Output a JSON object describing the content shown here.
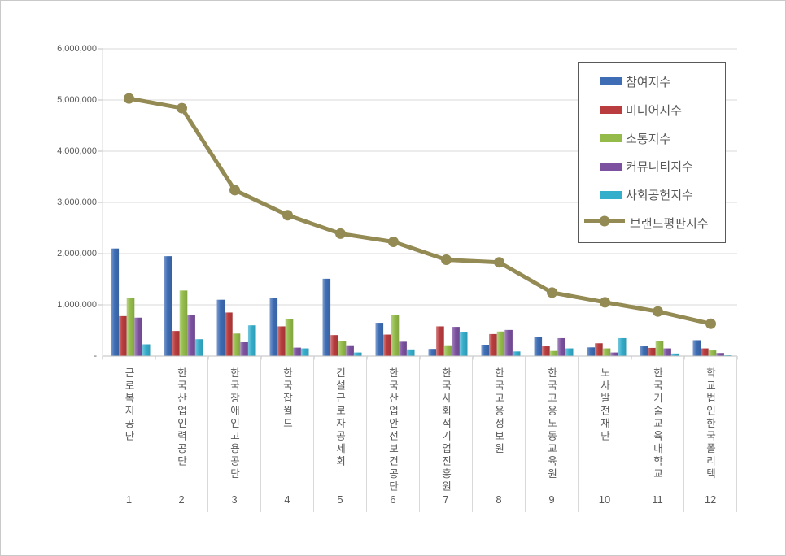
{
  "window": {
    "background": "#ffffff",
    "border_color": "#c9c9c9",
    "text_color": "#595959",
    "gridline_color": "#d9d9d9",
    "axis_color": "#bfbfbf",
    "legend_border_color": "#595959"
  },
  "chart_data": {
    "type": "bar",
    "subtype": "grouped bars with overlay line (combo)",
    "title": "",
    "xlabel": "",
    "ylabel": "",
    "ylim": [
      0,
      6000000
    ],
    "grid": true,
    "legend_position": "upper right",
    "y_ticks": [
      {
        "value": 6000000,
        "label": "6,000,000"
      },
      {
        "value": 5000000,
        "label": "5,000,000"
      },
      {
        "value": 4000000,
        "label": "4,000,000"
      },
      {
        "value": 3000000,
        "label": "3,000,000"
      },
      {
        "value": 2000000,
        "label": "2,000,000"
      },
      {
        "value": 1000000,
        "label": "1,000,000"
      },
      {
        "value": 0,
        "label": "-"
      }
    ],
    "categories": [
      "근로복지공단",
      "한국산업인력공단",
      "한국장애인고용공단",
      "한국잡월드",
      "건설근로자공제회",
      "한국산업안전보건공단",
      "한국사회적기업진흥원",
      "한국고용정보원",
      "한국고용노동교육원",
      "노사발전재단",
      "한국기술교육대학교",
      "학교법인한국폴리텍"
    ],
    "category_numbers": [
      "1",
      "2",
      "3",
      "4",
      "5",
      "6",
      "7",
      "8",
      "9",
      "10",
      "11",
      "12"
    ],
    "series": [
      {
        "name": "참여지수",
        "render": "bar",
        "color": "#3E6DB5",
        "values": [
          2100000,
          1950000,
          1100000,
          1130000,
          1510000,
          650000,
          140000,
          220000,
          380000,
          170000,
          190000,
          310000
        ]
      },
      {
        "name": "미디어지수",
        "render": "bar",
        "color": "#B93C3E",
        "values": [
          780000,
          490000,
          850000,
          580000,
          410000,
          420000,
          580000,
          430000,
          190000,
          250000,
          160000,
          150000
        ]
      },
      {
        "name": "소통지수",
        "render": "bar",
        "color": "#94BB4A",
        "values": [
          1130000,
          1280000,
          440000,
          730000,
          300000,
          800000,
          195000,
          480000,
          100000,
          150000,
          300000,
          110000
        ]
      },
      {
        "name": "커뮤니티지수",
        "render": "bar",
        "color": "#7C52A0",
        "values": [
          750000,
          800000,
          270000,
          165000,
          195000,
          280000,
          570000,
          510000,
          350000,
          70000,
          150000,
          60000
        ]
      },
      {
        "name": "사회공헌지수",
        "render": "bar",
        "color": "#35AECB",
        "values": [
          230000,
          330000,
          600000,
          150000,
          70000,
          130000,
          460000,
          90000,
          150000,
          350000,
          50000,
          15000
        ]
      },
      {
        "name": "브랜드평판지수",
        "render": "line",
        "color": "#948A54",
        "values": [
          5030000,
          4840000,
          3240000,
          2750000,
          2390000,
          2230000,
          1880000,
          1830000,
          1240000,
          1050000,
          870000,
          630000
        ]
      }
    ]
  }
}
